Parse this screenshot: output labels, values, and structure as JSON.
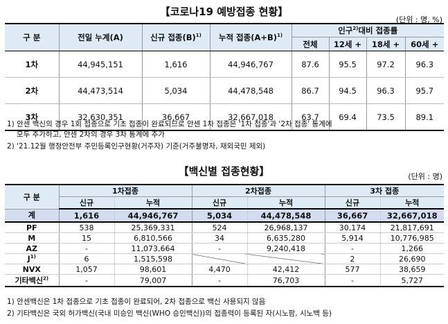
{
  "table1": {
    "title": "【코로나19 예방접종 현황】",
    "unit": "(단위 : 명, %)",
    "headers": {
      "category": "구 분",
      "prev_cum": "전일 누계(A)",
      "new": "신규 접종(B)",
      "new_sup": "1)",
      "cum": "누적 접종(A+B)",
      "cum_sup": "1)",
      "ratio": "인구",
      "ratio_sup": "2)",
      "ratio_tail": "대비 접종률",
      "sub": [
        "전체",
        "12세 +",
        "18세 +",
        "60세 +"
      ]
    },
    "rows": [
      {
        "label": "1차",
        "prev_cum": "44,945,151",
        "new": "1,616",
        "cum": "44,946,767",
        "r_all": "87.6",
        "r12": "95.5",
        "r18": "97.2",
        "r60": "96.3"
      },
      {
        "label": "2차",
        "prev_cum": "44,473,514",
        "new": "5,034",
        "cum": "44,478,548",
        "r_all": "86.7",
        "r12": "94.5",
        "r18": "96.3",
        "r60": "95.7"
      },
      {
        "label": "3차",
        "prev_cum": "32,630,351",
        "new": "36,667",
        "cum": "32,667,018",
        "r_all": "63.7",
        "r12": "69.4",
        "r18": "73.5",
        "r60": "89.1"
      }
    ],
    "notes": [
      "1) 안센 백신의 경우 1회 접종으로 기초 접종이 완료되므로 안센 1차 접종은 '1차 접종'과 '2차 접종' 통계에",
      "모두 추가하고, 안센 2차의 경우 3차 통계에 추가",
      "2) '21.12월 행정안전부 주민등록인구현황(거주자) 기준(거주불명자, 재외국민 제외)"
    ]
  },
  "table2": {
    "title": "【백신별 접종현황】",
    "unit": "(단위 : 명)",
    "headers": {
      "category": "구 분",
      "dose1": "1차접종",
      "dose2": "2차접종",
      "dose3": "3차 접종",
      "new": "신규",
      "cum": "누적"
    },
    "total": {
      "label": "계",
      "d1_new": "1,616",
      "d1_cum": "44,946,767",
      "d2_new": "5,034",
      "d2_cum": "44,478,548",
      "d3_new": "36,667",
      "d3_cum": "32,667,018"
    },
    "rows": [
      {
        "label": "PF",
        "sup": "",
        "d1_new": "538",
        "d1_cum": "25,369,331",
        "d2_new": "524",
        "d2_cum": "26,968,137",
        "d3_new": "30,174",
        "d3_cum": "21,817,691"
      },
      {
        "label": "M",
        "sup": "",
        "d1_new": "15",
        "d1_cum": "6,810,566",
        "d2_new": "34",
        "d2_cum": "6,635,280",
        "d3_new": "5,914",
        "d3_cum": "10,776,985"
      },
      {
        "label": "AZ",
        "sup": "",
        "d1_new": "-",
        "d1_cum": "11,073,664",
        "d2_new": "-",
        "d2_cum": "9,240,418",
        "d3_new": "-",
        "d3_cum": "1,266"
      },
      {
        "label": "J",
        "sup": "1)",
        "d1_new": "6",
        "d1_cum": "1,515,598",
        "d2_new": "",
        "d2_cum": "",
        "d3_new": "2",
        "d3_cum": "26,690"
      },
      {
        "label": "NVX",
        "sup": "",
        "d1_new": "1,057",
        "d1_cum": "98,601",
        "d2_new": "4,470",
        "d2_cum": "42,412",
        "d3_new": "577",
        "d3_cum": "38,659"
      },
      {
        "label": "기타백신",
        "sup": "2)",
        "d1_new": "-",
        "d1_cum": "79,007",
        "d2_new": "-",
        "d2_cum": "76,703",
        "d3_new": "-",
        "d3_cum": "5,727"
      }
    ],
    "notes": [
      "1) 안센백신은 1차 접종으로 기초 접종이 완료되어, 2차 접종으로 백신 사용되지 않음",
      "2) 기타백신은 국외 허가백신(국내 미승인 백신(WHO 승인백신))의 접종력이 등록된 자(시노팜, 시노백 등)"
    ]
  }
}
